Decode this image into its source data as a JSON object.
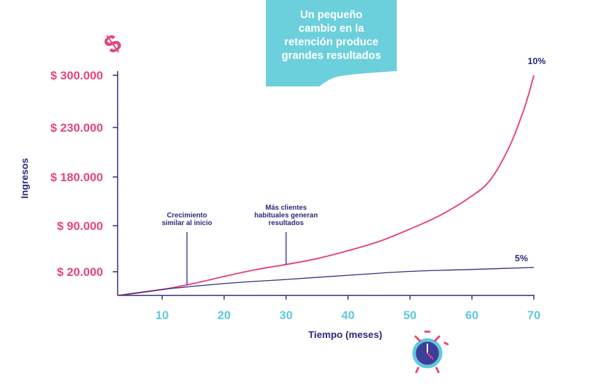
{
  "chart_data": {
    "type": "line",
    "title": "Un pequeño cambio en la retención produce grandes resultados",
    "xlabel": "Tiempo (meses)",
    "ylabel": "Ingresos",
    "x_ticks": [
      10,
      20,
      30,
      40,
      50,
      60,
      70
    ],
    "y_ticks": [
      {
        "value": 20000,
        "label": "$ 20.000"
      },
      {
        "value": 90000,
        "label": "$ 90.000"
      },
      {
        "value": 180000,
        "label": "$ 180.000"
      },
      {
        "value": 230000,
        "label": "$ 230.000"
      },
      {
        "value": 300000,
        "label": "$ 300.000"
      }
    ],
    "series": [
      {
        "name": "10%",
        "color": "#e5457a",
        "x": [
          3,
          10,
          15,
          20,
          25,
          30,
          35,
          40,
          45,
          50,
          55,
          60,
          63,
          66,
          68,
          69,
          70
        ],
        "y": [
          0,
          5000,
          10000,
          16000,
          23000,
          31000,
          40000,
          52000,
          66000,
          85000,
          110000,
          145000,
          175000,
          210000,
          245000,
          270000,
          300000
        ]
      },
      {
        "name": "5%",
        "color": "#2b2a7a",
        "x": [
          3,
          10,
          20,
          30,
          40,
          50,
          60,
          70
        ],
        "y": [
          0,
          5000,
          10000,
          13500,
          17000,
          20500,
          23500,
          26500
        ]
      }
    ],
    "annotations": [
      {
        "lines": [
          "Crecimiento",
          "similar al inicio"
        ],
        "x": 14
      },
      {
        "lines": [
          "Más clientes",
          "habituales generan",
          "resultados"
        ],
        "x": 30
      }
    ],
    "grid": false,
    "legend": "none"
  },
  "colors": {
    "axis": "#2b2a7a",
    "y_tick_text": "#e5457a",
    "x_tick_text": "#5ec8dc",
    "banner_bg": "#6ccfdc",
    "dollar_icon": "#e5457a",
    "clock_face": "#3d3d9a",
    "clock_ring": "#5ec8dc"
  },
  "icons": [
    "dollar-icon",
    "alarm-clock-icon"
  ]
}
